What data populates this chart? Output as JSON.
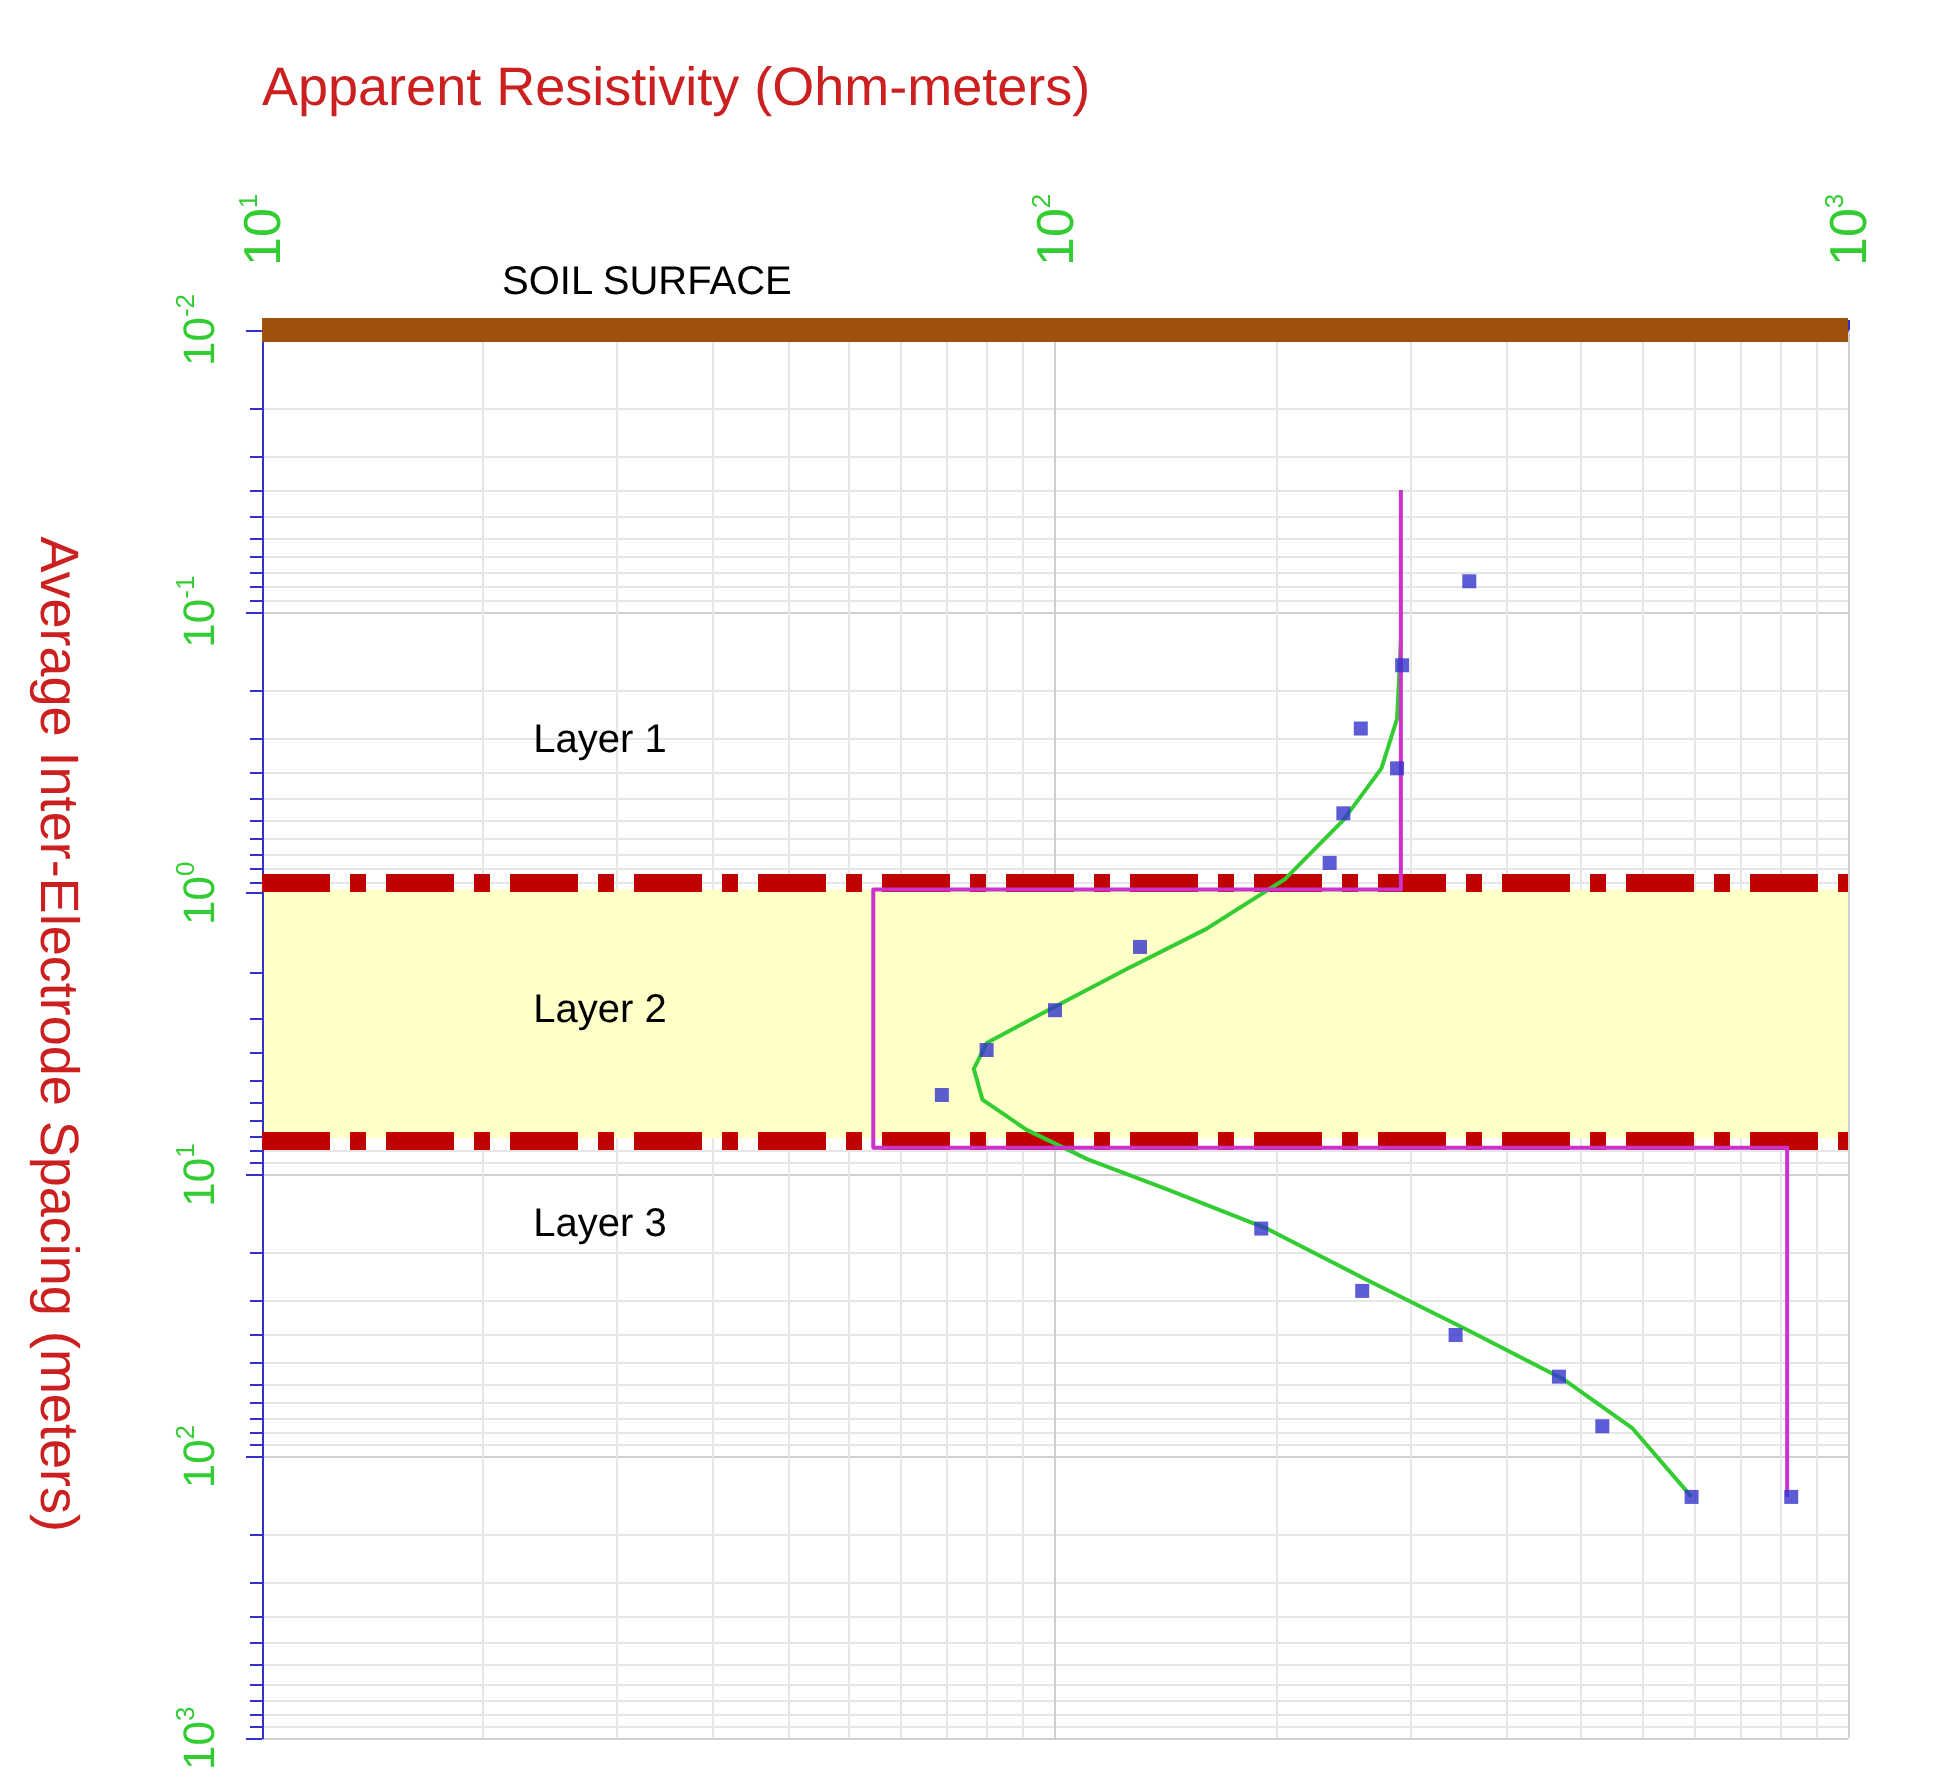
{
  "chart_data": {
    "type": "scatter",
    "xlabel": "Apparent Resistivity (Ohm-meters)",
    "ylabel": "Average Inter-Electrode Spacing (meters)",
    "log": "xy",
    "xlim": [
      10,
      1000
    ],
    "ylim": [
      1000,
      0.01
    ],
    "xticks": [
      {
        "value": 10,
        "label": "10$^{1}$"
      },
      {
        "value": 100,
        "label": "10$^{2}$"
      },
      {
        "value": 1000,
        "label": "10$^{3}$"
      }
    ],
    "yticks": [
      {
        "value": 0.01,
        "label": "10$^{-2}$"
      },
      {
        "value": 0.1,
        "label": "10$^{-1}$"
      },
      {
        "value": 1,
        "label": "10$^{0}$"
      },
      {
        "value": 10,
        "label": "10$^{1}$"
      },
      {
        "value": 100,
        "label": "10$^{2}$"
      },
      {
        "value": 1000,
        "label": "10$^{3}$"
      }
    ],
    "grid": true,
    "series": [
      {
        "color": "#3333cc",
        "marker": "square",
        "x": [
          333,
          274,
          243,
          270,
          231,
          222,
          128,
          100,
          82,
          72,
          182,
          244,
          320,
          432,
          490,
          635,
          848
        ],
        "values": [
          0.078,
          0.155,
          0.26,
          0.36,
          0.52,
          0.78,
          1.55,
          2.6,
          3.6,
          5.2,
          15.5,
          25.8,
          37,
          52,
          78,
          139,
          139
        ]
      },
      {
        "type": "line",
        "color": "#33cc33",
        "marker": "none",
        "x": [
          273,
          270,
          258,
          231,
          195,
          155,
          123,
          98,
          82,
          79,
          81,
          92,
          110,
          138,
          185,
          246,
          328,
          437,
          534,
          635
        ],
        "values": [
          0.126,
          0.24,
          0.36,
          0.55,
          0.89,
          1.34,
          1.86,
          2.6,
          3.4,
          4.2,
          5.4,
          6.9,
          8.8,
          11.2,
          15.5,
          23.4,
          35,
          53,
          79,
          139
        ]
      },
      {
        "type": "line",
        "color": "#cc33cc",
        "marker": "none",
        "x": [
          273,
          273,
          59,
          59,
          838,
          838
        ],
        "values": [
          0.037,
          0.97,
          0.97,
          8,
          8,
          139
        ]
      }
    ],
    "ref_lines": [
      {
        "axis": "y",
        "value": 0.01,
        "label": "SOIL SURFACE",
        "color": "#a0500f",
        "line_style": "solid"
      },
      {
        "axis": "y",
        "value": 0.91,
        "label": null,
        "color": "#c00000",
        "line_style": "dashed"
      },
      {
        "axis": "y",
        "value": 7.5,
        "label": null,
        "color": "#c00000",
        "line_style": "dashed"
      }
    ],
    "bands": [
      {
        "axis": "y",
        "from": 0.97,
        "to": 7.4,
        "label": null,
        "color": "#ffffc8"
      }
    ],
    "annotations": [
      "Layer 1",
      "Layer 2",
      "Layer 3"
    ]
  }
}
